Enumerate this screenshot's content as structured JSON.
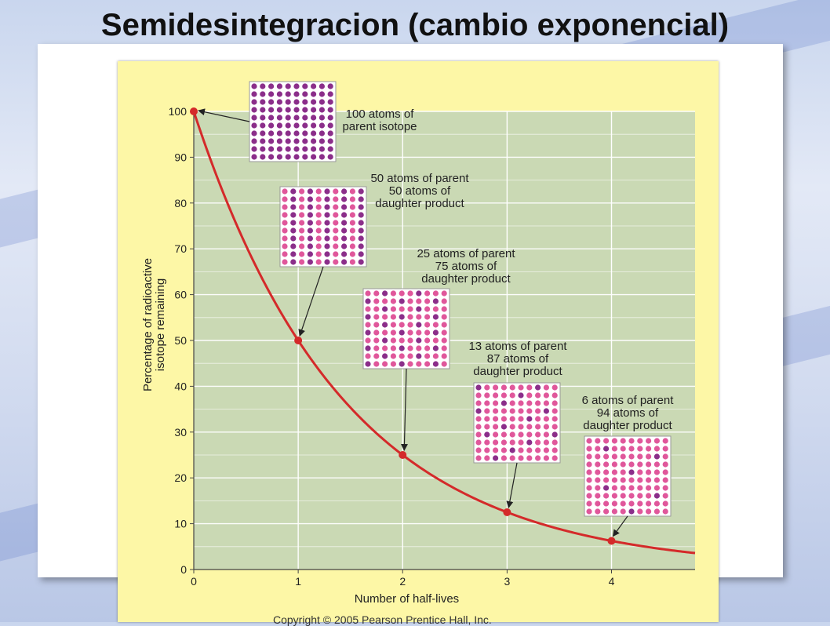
{
  "slide": {
    "title": "Semidesintegracion (cambio exponencial)",
    "copyright": "Copyright © 2005 Pearson Prentice Hall, Inc."
  },
  "colors": {
    "plot_bg": "#cad9b4",
    "figure_bg": "#fdf7a6",
    "curve": "#d42a2a",
    "parent_atom": "#8b2e8a",
    "daughter_atom": "#e0579b"
  },
  "chart_data": {
    "type": "line",
    "title": "",
    "xlabel": "Number of half-lives",
    "ylabel": "Percentage of radioactive isotope remaining",
    "xlim": [
      0,
      4.8
    ],
    "ylim": [
      0,
      100
    ],
    "x_ticks": [
      0,
      1,
      2,
      3,
      4
    ],
    "y_ticks": [
      0,
      10,
      20,
      30,
      40,
      50,
      60,
      70,
      80,
      90,
      100
    ],
    "grid": true,
    "curve": "exponential decay, y = 100 * 0.5^x",
    "series": [
      {
        "x": [
          0,
          1,
          2,
          3,
          4
        ],
        "y": [
          100,
          50,
          25,
          12.5,
          6.25
        ]
      }
    ],
    "annotations": [
      {
        "x": 0,
        "y": 100,
        "lines": [
          "100 atoms of",
          "parent isotope"
        ],
        "parent": 100,
        "daughter": 0
      },
      {
        "x": 1,
        "y": 50,
        "lines": [
          "50 atoms of parent",
          "50 atoms of",
          "daughter product"
        ],
        "parent": 50,
        "daughter": 50
      },
      {
        "x": 2,
        "y": 25,
        "lines": [
          "25 atoms of parent",
          "75 atoms of",
          "daughter product"
        ],
        "parent": 25,
        "daughter": 75
      },
      {
        "x": 3,
        "y": 12.5,
        "lines": [
          "13 atoms of parent",
          "87 atoms of",
          "daughter product"
        ],
        "parent": 13,
        "daughter": 87
      },
      {
        "x": 4,
        "y": 6.25,
        "lines": [
          "6 atoms of parent",
          "94 atoms of",
          "daughter product"
        ],
        "parent": 6,
        "daughter": 94
      }
    ]
  }
}
